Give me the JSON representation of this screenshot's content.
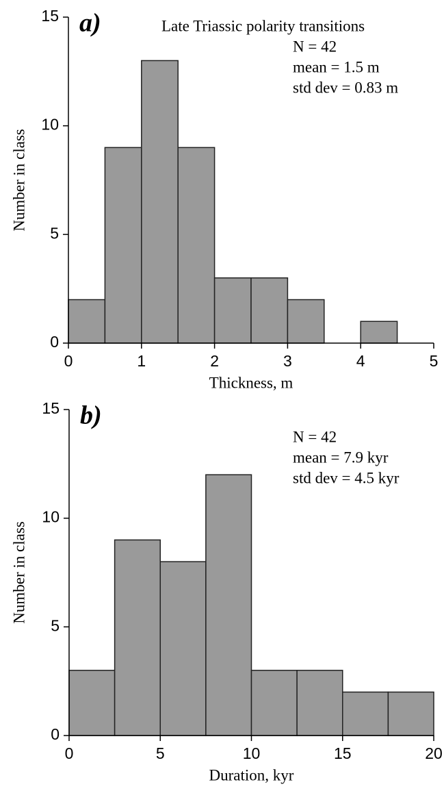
{
  "chart_data": [
    {
      "type": "histogram",
      "panel_label": "a)",
      "title": "Late Triassic polarity transitions",
      "annotations": [
        "N = 42",
        "mean = 1.5 m",
        "std dev = 0.83 m"
      ],
      "xlabel": "Thickness, m",
      "ylabel": "Number in class",
      "bins": [
        0,
        0.5,
        1,
        1.5,
        2,
        2.5,
        3,
        3.5,
        4,
        4.5
      ],
      "counts": [
        2,
        9,
        13,
        9,
        3,
        3,
        2,
        0,
        1
      ],
      "color": "#9a9a9a",
      "xlim": [
        0,
        5
      ],
      "xticks": [
        0,
        1,
        2,
        3,
        4,
        5
      ],
      "ylim": [
        0,
        15
      ],
      "yticks": [
        0,
        5,
        10,
        15
      ]
    },
    {
      "type": "histogram",
      "panel_label": "b)",
      "annotations": [
        "N = 42",
        "mean = 7.9 kyr",
        "std dev = 4.5 kyr"
      ],
      "xlabel": "Duration, kyr",
      "ylabel": "Number in class",
      "bins": [
        0,
        2.5,
        5,
        7.5,
        10,
        12.5,
        15,
        17.5,
        20
      ],
      "counts": [
        3,
        9,
        8,
        12,
        3,
        3,
        2,
        2
      ],
      "color": "#9a9a9a",
      "xlim": [
        0,
        20
      ],
      "xticks": [
        0,
        5,
        10,
        15,
        20
      ],
      "ylim": [
        0,
        15
      ],
      "yticks": [
        0,
        5,
        10,
        15
      ]
    }
  ]
}
